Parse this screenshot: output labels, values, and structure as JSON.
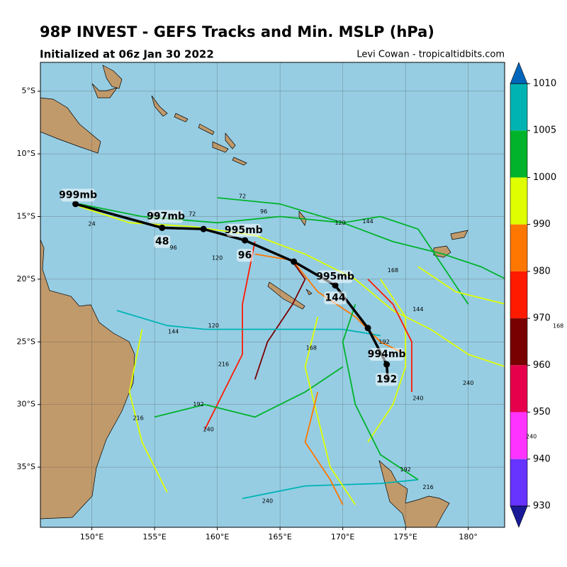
{
  "chart_data": {
    "type": "track-map",
    "title": "98P INVEST - GEFS Tracks and Min. MSLP (hPa)",
    "subtitle": "Initialized at 06z Jan 30 2022",
    "credit": "Levi Cowan - tropicaltidbits.com",
    "xlim": [
      145.9,
      182.9
    ],
    "ylim": [
      -39.8,
      -2.7
    ],
    "xticks": [
      {
        "value": 150,
        "label": "150°E"
      },
      {
        "value": 155,
        "label": "155°E"
      },
      {
        "value": 160,
        "label": "160°E"
      },
      {
        "value": 165,
        "label": "165°E"
      },
      {
        "value": 170,
        "label": "170°E"
      },
      {
        "value": 175,
        "label": "175°E"
      },
      {
        "value": 180,
        "label": "180°"
      }
    ],
    "yticks": [
      {
        "value": -5,
        "label": "5°S"
      },
      {
        "value": -10,
        "label": "10°S"
      },
      {
        "value": -15,
        "label": "15°S"
      },
      {
        "value": -20,
        "label": "20°S"
      },
      {
        "value": -25,
        "label": "25°S"
      },
      {
        "value": -30,
        "label": "30°S"
      },
      {
        "value": -35,
        "label": "35°S"
      }
    ],
    "grid": true,
    "ocean_color": "#96cde3",
    "land_color": "#c19a6b",
    "ensemble_tracks": [
      {
        "color": "#dfff00",
        "lon": [
          149,
          153,
          158,
          163,
          167,
          171,
          174,
          177,
          180,
          183
        ],
        "lat": [
          -14.2,
          -15.5,
          -15.8,
          -16.5,
          -18,
          -20,
          -22.5,
          -24,
          -26,
          -27
        ]
      },
      {
        "color": "#00b32a",
        "lon": [
          149,
          154,
          160,
          165,
          170,
          173,
          176,
          178,
          180
        ],
        "lat": [
          -14,
          -15,
          -15.5,
          -15,
          -15.5,
          -15,
          -16,
          -19,
          -22
        ]
      },
      {
        "color": "#00b32a",
        "lon": [
          160,
          165,
          170,
          174,
          178,
          181,
          183
        ],
        "lat": [
          -13.5,
          -14,
          -15.5,
          -17,
          -18,
          -19,
          -20
        ]
      },
      {
        "color": "#ff7700",
        "lon": [
          163,
          166,
          168,
          171,
          173,
          175
        ],
        "lat": [
          -18,
          -18.5,
          -21,
          -23,
          -25,
          -26
        ]
      },
      {
        "color": "#780000",
        "lon": [
          166,
          167,
          166,
          164,
          163
        ],
        "lat": [
          -18.6,
          -20,
          -22,
          -25,
          -28
        ]
      },
      {
        "color": "#ff1a00",
        "lon": [
          163,
          162,
          162,
          160,
          159
        ],
        "lat": [
          -17,
          -22,
          -26,
          -30,
          -32
        ]
      },
      {
        "color": "#00b3b3",
        "lon": [
          152,
          156,
          159,
          164,
          170,
          173
        ],
        "lat": [
          -22.5,
          -23.7,
          -24,
          -24,
          -24,
          -24.5
        ]
      },
      {
        "color": "#00b3b3",
        "lon": [
          162,
          167,
          173,
          176
        ],
        "lat": [
          -37.5,
          -36.5,
          -36.3,
          -36
        ]
      },
      {
        "color": "#00b32a",
        "lon": [
          155,
          159,
          163,
          167,
          170
        ],
        "lat": [
          -31,
          -30,
          -31,
          -29,
          -27
        ]
      },
      {
        "color": "#dfff00",
        "lon": [
          168,
          167,
          168,
          169,
          171
        ],
        "lat": [
          -23,
          -27,
          -31,
          -35,
          -38
        ]
      },
      {
        "color": "#ff7700",
        "lon": [
          168,
          167,
          169,
          170
        ],
        "lat": [
          -29,
          -33,
          -36,
          -38
        ]
      },
      {
        "color": "#dfff00",
        "lon": [
          173,
          175,
          175,
          174,
          172
        ],
        "lat": [
          -20,
          -23,
          -27,
          -30,
          -33
        ]
      },
      {
        "color": "#00b32a",
        "lon": [
          171,
          170,
          171,
          173,
          176
        ],
        "lat": [
          -22,
          -25,
          -30,
          -34,
          -36
        ]
      },
      {
        "color": "#dfff00",
        "lon": [
          176,
          179,
          183
        ],
        "lat": [
          -19,
          -21,
          -22
        ]
      },
      {
        "color": "#ff1a00",
        "lon": [
          172,
          174,
          175.5,
          175.5
        ],
        "lat": [
          -20,
          -22,
          -25,
          -29
        ]
      },
      {
        "color": "#dfff00",
        "lon": [
          154,
          153,
          154,
          156
        ],
        "lat": [
          -24,
          -29,
          -33,
          -37
        ]
      }
    ],
    "track_labels": [
      {
        "text": "24",
        "lon": 150,
        "lat": -15.6
      },
      {
        "text": "48",
        "lon": 155,
        "lat": -14.9
      },
      {
        "text": "72",
        "lon": 158,
        "lat": -14.8
      },
      {
        "text": "72",
        "lon": 162,
        "lat": -13.4
      },
      {
        "text": "96",
        "lon": 163.7,
        "lat": -14.6
      },
      {
        "text": "96",
        "lon": 156.5,
        "lat": -17.5
      },
      {
        "text": "120",
        "lon": 169.8,
        "lat": -15.5
      },
      {
        "text": "120",
        "lon": 160,
        "lat": -18.3
      },
      {
        "text": "144",
        "lon": 172,
        "lat": -15.4
      },
      {
        "text": "144",
        "lon": 176,
        "lat": -22.4
      },
      {
        "text": "168",
        "lon": 174,
        "lat": -19.3
      },
      {
        "text": "168",
        "lon": 167.5,
        "lat": -25.5
      },
      {
        "text": "192",
        "lon": 173.3,
        "lat": -25
      },
      {
        "text": "192",
        "lon": 158.5,
        "lat": -30
      },
      {
        "text": "216",
        "lon": 160.5,
        "lat": -26.8
      },
      {
        "text": "216",
        "lon": 153.7,
        "lat": -31.1
      },
      {
        "text": "240",
        "lon": 176,
        "lat": -29.5
      },
      {
        "text": "240",
        "lon": 164,
        "lat": -37.7
      },
      {
        "text": "240",
        "lon": 159.3,
        "lat": -32
      },
      {
        "text": "144",
        "lon": 156.5,
        "lat": -24.2
      },
      {
        "text": "120",
        "lon": 159.7,
        "lat": -23.7
      },
      {
        "text": "216",
        "lon": 176.8,
        "lat": -36.6
      },
      {
        "text": "192",
        "lon": 175,
        "lat": -35.2
      },
      {
        "text": "240",
        "lon": 180,
        "lat": -28.3
      }
    ],
    "mean_track": {
      "color": "#000000",
      "lon": [
        148.7,
        155.6,
        158.9,
        162.2,
        166.1,
        169.4,
        172.0,
        173.5,
        173.6
      ],
      "lat": [
        -14.0,
        -15.9,
        -16.0,
        -16.9,
        -18.6,
        -20.5,
        -23.9,
        -26.8,
        -28.2
      ]
    },
    "mean_track_labels": [
      {
        "text": "999mb",
        "lon": 148.9,
        "lat": -13.3
      },
      {
        "text": "997mb",
        "lon": 155.9,
        "lat": -15.0
      },
      {
        "text": "48",
        "lon": 155.6,
        "lat": -17.0
      },
      {
        "text": "995mb",
        "lon": 162.1,
        "lat": -16.1
      },
      {
        "text": "96",
        "lon": 162.2,
        "lat": -18.1
      },
      {
        "text": "995mb",
        "lon": 169.4,
        "lat": -19.8
      },
      {
        "text": "144",
        "lon": 169.4,
        "lat": -21.5
      },
      {
        "text": "994mb",
        "lon": 173.5,
        "lat": -26.0
      },
      {
        "text": "192",
        "lon": 173.5,
        "lat": -28.0
      }
    ],
    "colorbar": {
      "ticks": [
        1010,
        1005,
        1000,
        990,
        980,
        970,
        960,
        950,
        940,
        930
      ],
      "colors": [
        "#00b3b3",
        "#00b32a",
        "#dfff00",
        "#ff7700",
        "#ff1a00",
        "#780000",
        "#e6004c",
        "#ff33ff",
        "#6633ff"
      ],
      "over_color": "#0066bb",
      "under_color": "#1a1a99"
    },
    "annotations": [
      "168",
      "240"
    ]
  }
}
